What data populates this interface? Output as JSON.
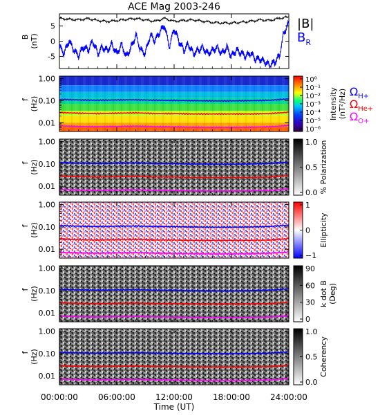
{
  "title": "ACE Mag 2003-246",
  "x_axis": {
    "label": "Time (UT)",
    "ticks": [
      "00:00:00",
      "06:00:00",
      "12:00:00",
      "18:00:00",
      "24:00:00"
    ],
    "range_hours": [
      0,
      24
    ]
  },
  "legend_top": {
    "items": [
      {
        "main": "|B|",
        "sub": "",
        "color": "#000000"
      },
      {
        "main": "B",
        "sub": "R",
        "color": "#0000ff"
      }
    ]
  },
  "legend_gyro": {
    "items": [
      {
        "main": "Ω",
        "sub": "H+",
        "color": "#0000ff"
      },
      {
        "main": "Ω",
        "sub": "He+",
        "color": "#ff0000"
      },
      {
        "main": "Ω",
        "sub": "O+",
        "color": "#ff00ff"
      }
    ]
  },
  "chart_data": [
    {
      "type": "line",
      "panel": "B",
      "ylabel": "B",
      "yunit": "(nT)",
      "ylim": [
        -9,
        9
      ],
      "yticks": [
        "5",
        "0",
        "-5"
      ],
      "xlim": [
        0,
        24
      ],
      "series": [
        {
          "name": "|B|",
          "color": "#000000",
          "x": [
            0,
            1,
            2,
            3,
            4,
            5,
            6,
            7,
            8,
            9,
            10,
            11,
            12,
            13,
            14,
            15,
            16,
            17,
            18,
            19,
            20,
            21,
            22,
            23,
            24
          ],
          "y": [
            7.5,
            7.2,
            7.0,
            7.4,
            6.8,
            6.5,
            6.8,
            7.2,
            7.5,
            7.0,
            6.5,
            7.5,
            6.5,
            6.8,
            7.0,
            6.6,
            6.2,
            6.0,
            6.0,
            6.2,
            6.5,
            7.0,
            6.8,
            7.5,
            8.0
          ]
        },
        {
          "name": "B_R",
          "color": "#0000ff",
          "x": [
            0,
            0.5,
            1,
            1.5,
            2,
            2.5,
            3,
            3.5,
            4,
            4.5,
            5,
            5.5,
            6,
            6.5,
            7,
            7.5,
            8,
            8.5,
            9,
            9.5,
            10,
            10.5,
            11,
            11.5,
            12,
            12.5,
            13,
            13.5,
            14,
            14.5,
            15,
            15.5,
            16,
            16.5,
            17,
            17.5,
            18,
            18.5,
            19,
            19.5,
            20,
            20.5,
            21,
            21.5,
            22,
            22.5,
            23,
            23.5,
            24
          ],
          "y": [
            -2,
            -4,
            0,
            -3,
            -5,
            -2,
            -3,
            0,
            -4,
            -2,
            -3,
            -1,
            -4,
            -1,
            -5,
            -2,
            2,
            -3,
            -4,
            2,
            0,
            3,
            5,
            -2,
            4,
            0,
            -3,
            -1,
            -4,
            -3,
            -2,
            -4,
            -3,
            -2,
            -4,
            -2,
            -5,
            -3,
            -4,
            -5,
            -4,
            -6,
            -6,
            -7,
            -8,
            -7,
            -5,
            3,
            6
          ]
        }
      ]
    },
    {
      "type": "heatmap",
      "panel": "power_spectral_density",
      "ylabel": "f",
      "yunit": "(Hz)",
      "ylim": [
        0.004,
        1.3
      ],
      "yscale": "log",
      "yticks": [
        "1.00",
        "0.10",
        "0.01"
      ],
      "colorbar": {
        "label": "Intensity",
        "unit": "(nT²/Hz)",
        "scale": "log",
        "ticks": [
          "10⁰",
          "10⁻¹",
          "10⁻²",
          "10⁻³",
          "10⁻⁴",
          "10⁻⁵",
          "10⁻⁶"
        ]
      },
      "colormap": "rainbow"
    },
    {
      "type": "heatmap",
      "panel": "percent_polarization",
      "ylabel": "f",
      "yunit": "(Hz)",
      "ylim": [
        0.004,
        1.3
      ],
      "yscale": "log",
      "yticks": [
        "1.00",
        "0.10",
        "0.01"
      ],
      "colorbar": {
        "label": "% Polarization",
        "unit": "",
        "scale": "linear",
        "ticks": [
          "1.0",
          "0.5",
          "0.0"
        ]
      },
      "colormap": "grayscale"
    },
    {
      "type": "heatmap",
      "panel": "ellipticity",
      "ylabel": "f",
      "yunit": "(Hz)",
      "ylim": [
        0.004,
        1.3
      ],
      "yscale": "log",
      "yticks": [
        "1.00",
        "0.10",
        "0.01"
      ],
      "colorbar": {
        "label": "Ellipticity",
        "unit": "",
        "scale": "linear",
        "ticks": [
          "1",
          "0",
          "−1"
        ]
      },
      "colormap": "blue-white-red"
    },
    {
      "type": "heatmap",
      "panel": "k_dot_b",
      "ylabel": "f",
      "yunit": "(Hz)",
      "ylim": [
        0.004,
        1.3
      ],
      "yscale": "log",
      "yticks": [
        "1.00",
        "0.10",
        "0.01"
      ],
      "colorbar": {
        "label": "k dot B",
        "unit": "(Deg)",
        "scale": "linear",
        "ticks": [
          "90",
          "60",
          "30",
          "0"
        ]
      },
      "colormap": "grayscale"
    },
    {
      "type": "heatmap",
      "panel": "coherency",
      "ylabel": "f",
      "yunit": "(Hz)",
      "ylim": [
        0.004,
        1.3
      ],
      "yscale": "log",
      "yticks": [
        "1.00",
        "0.10",
        "0.01"
      ],
      "colorbar": {
        "label": "Coherency",
        "unit": "",
        "scale": "linear",
        "ticks": [
          "1.0",
          "0.5",
          "0.0"
        ]
      },
      "colormap": "grayscale"
    }
  ],
  "gyrofrequency_overlays": {
    "x": [
      0,
      2,
      4,
      6,
      8,
      10,
      12,
      14,
      16,
      18,
      20,
      22,
      24
    ],
    "series": [
      {
        "name": "Ω_H+",
        "color": "#0000ff",
        "y": [
          0.115,
          0.108,
          0.105,
          0.108,
          0.11,
          0.105,
          0.103,
          0.1,
          0.098,
          0.098,
          0.1,
          0.105,
          0.12
        ]
      },
      {
        "name": "Ω_He+",
        "color": "#ff0000",
        "y": [
          0.029,
          0.027,
          0.026,
          0.027,
          0.028,
          0.026,
          0.026,
          0.025,
          0.025,
          0.025,
          0.025,
          0.026,
          0.03
        ]
      },
      {
        "name": "Ω_O+",
        "color": "#ff00ff",
        "y": [
          0.0072,
          0.0068,
          0.0066,
          0.0068,
          0.007,
          0.0066,
          0.0065,
          0.0063,
          0.0062,
          0.0062,
          0.0063,
          0.0066,
          0.0075
        ]
      }
    ]
  }
}
